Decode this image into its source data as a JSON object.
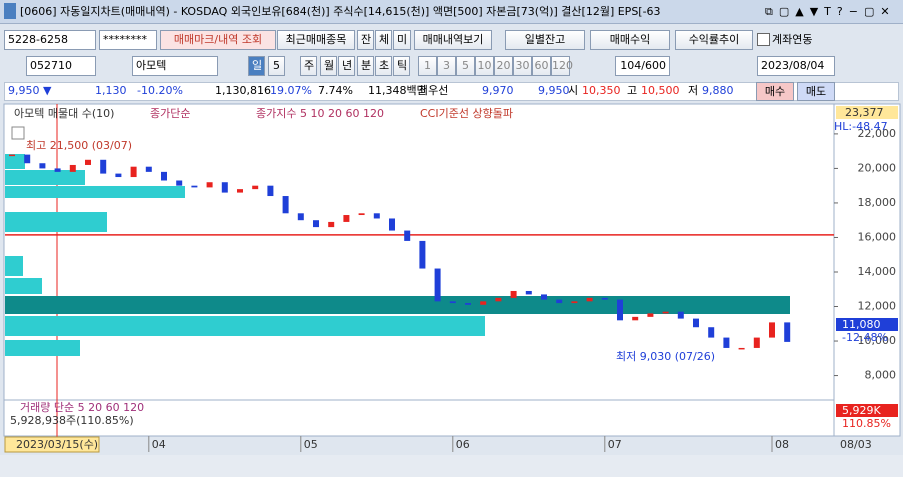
{
  "title_bar": {
    "text": "[0606] 자동일지차트(매매내역) - KOSDAQ 외국인보유[684(천)] 주식수[14,615(천)] 액면[500] 자본금[73(억)] 결산[12월] EPS[-63"
  },
  "toolbar1": {
    "account": "5228-6258",
    "password": "********",
    "buttons": [
      "매매마크/내역 조회",
      "최근매매종목",
      "잔",
      "체",
      "미",
      "매매내역보기",
      "일별잔고",
      "매매수익",
      "수익률추이"
    ],
    "checkbox": "계좌연동"
  },
  "toolbar2": {
    "code": "052710",
    "name": "아모텍",
    "period_buttons": [
      "일",
      "5",
      "주",
      "월",
      "년",
      "분",
      "초",
      "틱"
    ],
    "intervals": [
      "1",
      "3",
      "5",
      "10",
      "20",
      "30",
      "60",
      "120"
    ],
    "count": "104/600",
    "date": "2023/08/04"
  },
  "quote": {
    "price": "9,950 ▼",
    "change": "1,130",
    "change_pct": "-10.20%",
    "volume": "1,130,816",
    "turnover": "19.07%",
    "ratio": "7.74%",
    "amount": "11,348백만",
    "best_label": "최우선",
    "ask": "9,970",
    "bid": "9,950",
    "open_label": "시",
    "open": "10,350",
    "high_label": "고",
    "high": "10,500",
    "low_label": "저",
    "low": "9,880",
    "buy": "매수",
    "sell": "매도"
  },
  "chart_data": {
    "type": "candlestick",
    "legend": [
      "아모텍 매물대 수(10)",
      "종가단순",
      "종가지수 5 10 20 60 120",
      "CCI기준선 상향돌파"
    ],
    "values": [
      20800,
      20300,
      20000,
      19800,
      20200,
      20500,
      19700,
      19500,
      20100,
      19800,
      19300,
      19000,
      18900,
      19200,
      18600,
      18800,
      19000,
      18400,
      17400,
      17000,
      16600,
      16900,
      17300,
      17400,
      17100,
      16400,
      15800,
      14200,
      12300,
      12200,
      12100,
      12300,
      12500,
      12900,
      12700,
      12400,
      12200,
      12300,
      12500,
      12400,
      11200,
      11400,
      11600,
      11700,
      11300,
      10800,
      10200,
      9600,
      9600,
      10200,
      11080,
      9950
    ],
    "up_color": "#e8231f",
    "down_color": "#1f3fd8",
    "ylim": [
      6700,
      23500
    ],
    "yticks": [
      {
        "value": 8000,
        "label": "8,000"
      },
      {
        "value": 10000,
        "label": "10,000"
      },
      {
        "value": 12000,
        "label": "12,000"
      },
      {
        "value": 14000,
        "label": "14,000"
      },
      {
        "value": 16000,
        "label": "16,000"
      },
      {
        "value": 18000,
        "label": "18,000"
      },
      {
        "value": 20000,
        "label": "20,000"
      },
      {
        "value": 22000,
        "label": "22,000"
      }
    ],
    "xticks": [
      {
        "value": 9,
        "label": "04"
      },
      {
        "value": 19,
        "label": "05"
      },
      {
        "value": 29,
        "label": "06"
      },
      {
        "value": 39,
        "label": "07"
      },
      {
        "value": 50,
        "label": "08"
      }
    ],
    "x_start_label": "2023/03/15(수)",
    "x_end_label": "08/03",
    "hline": 16150,
    "hline_color": "#e8231f",
    "high_note": "최고 21,500 (03/07)",
    "low_note": "최저 9,030 (07/26)",
    "top_label": "23,377",
    "hl_label": "HL:-48.47",
    "last_label": "11,080",
    "last_pct": "-12.48%",
    "volume_legend": "거래량 단순 5 20 60 120",
    "volume_info": "5,928,938주(110.85%)",
    "volume_right": "5,929K",
    "volume_pct": "110.85%"
  }
}
